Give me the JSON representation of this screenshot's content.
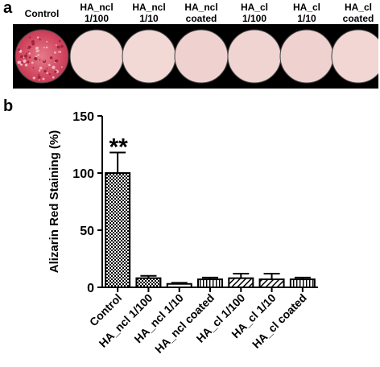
{
  "panel_a": {
    "label": "a",
    "wells": [
      {
        "header": [
          "Control"
        ],
        "color": "#d94f6a"
      },
      {
        "header": [
          "HA_ncl",
          "1/100"
        ],
        "color": "#f1d6d3"
      },
      {
        "header": [
          "HA_ncl",
          "1/10"
        ],
        "color": "#f2d9d6"
      },
      {
        "header": [
          "HA_ncl",
          "coated"
        ],
        "color": "#efd2cf"
      },
      {
        "header": [
          "HA_cl",
          "1/100"
        ],
        "color": "#f0d4d2"
      },
      {
        "header": [
          "HA_cl",
          "1/10"
        ],
        "color": "#efd1cf"
      },
      {
        "header": [
          "HA_cl",
          "coated"
        ],
        "color": "#f1d6d3"
      }
    ]
  },
  "panel_b": {
    "label": "b"
  },
  "chart_data": {
    "type": "bar",
    "categories": [
      "Control",
      "HA_ncl 1/100",
      "HA_ncl 1/10",
      "HA_ncl coated",
      "HA_cl 1/100",
      "HA_cl 1/10",
      "HA_cl coated"
    ],
    "values": [
      100,
      8,
      3,
      7,
      8,
      7,
      7
    ],
    "errors": [
      18,
      2,
      1,
      1.5,
      4,
      5,
      1.5
    ],
    "patterns": [
      "checker",
      "checker",
      "none",
      "vlines",
      "diag",
      "diag",
      "vlines"
    ],
    "annotations": [
      {
        "category": "Control",
        "text": "**"
      }
    ],
    "ylabel": "Alizarin Red Staining (%)",
    "xlabel": "",
    "ylim": [
      0,
      150
    ],
    "yticks": [
      0,
      50,
      100,
      150
    ],
    "grid": false
  }
}
